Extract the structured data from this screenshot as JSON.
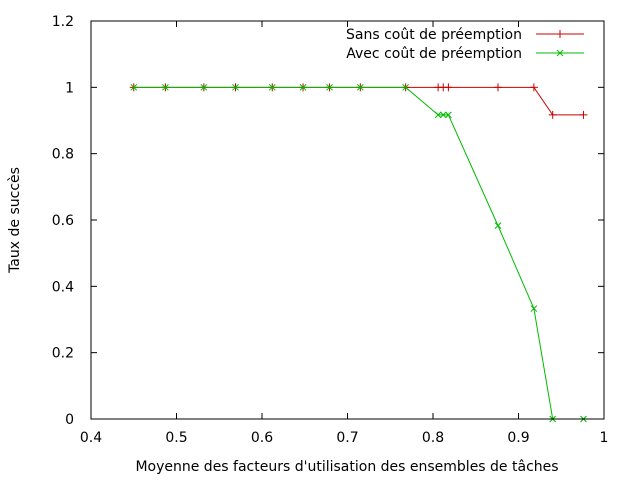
{
  "chart_data": {
    "type": "line",
    "title": "",
    "xlabel": "Moyenne des facteurs d'utilisation des ensembles de tâches",
    "ylabel": "Taux de succès",
    "xlim": [
      0.4,
      1.0
    ],
    "ylim": [
      0,
      1.2
    ],
    "xticks": [
      "0.4",
      "0.5",
      "0.6",
      "0.7",
      "0.8",
      "0.9",
      "1"
    ],
    "yticks": [
      "0",
      "0.2",
      "0.4",
      "0.6",
      "0.8",
      "1",
      "1.2"
    ],
    "grid": false,
    "legend_position": "top-right",
    "series": [
      {
        "name": "Sans coût de préemption",
        "color": "#cc0000",
        "marker": "plus",
        "x": [
          0.45,
          0.487,
          0.532,
          0.569,
          0.612,
          0.648,
          0.679,
          0.715,
          0.768,
          0.806,
          0.812,
          0.818,
          0.876,
          0.918,
          0.94,
          0.976
        ],
        "y": [
          1,
          1,
          1,
          1,
          1,
          1,
          1,
          1,
          1,
          1,
          1,
          1,
          1,
          1,
          0.917,
          0.917
        ]
      },
      {
        "name": "Avec coût de préemption",
        "color": "#00bb00",
        "marker": "x",
        "x": [
          0.45,
          0.487,
          0.532,
          0.569,
          0.612,
          0.648,
          0.679,
          0.715,
          0.768,
          0.806,
          0.812,
          0.818,
          0.876,
          0.918,
          0.94,
          0.976
        ],
        "y": [
          1,
          1,
          1,
          1,
          1,
          1,
          1,
          1,
          1,
          0.917,
          0.917,
          0.917,
          0.583,
          0.333,
          0,
          0
        ]
      }
    ]
  }
}
